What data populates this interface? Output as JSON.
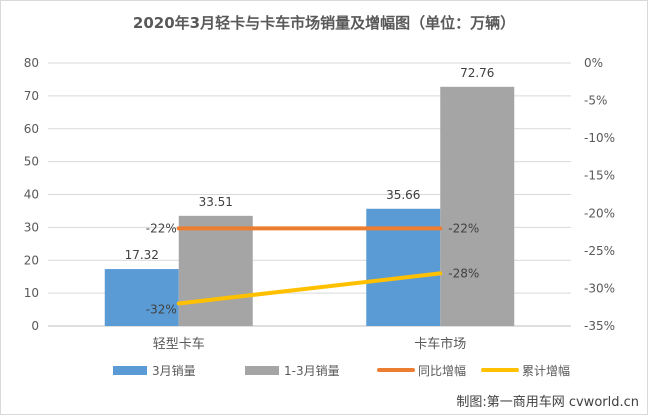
{
  "chart_data": {
    "type": "bar",
    "title": "2020年3月轻卡与卡车市场销量及增幅图（单位：万辆）",
    "categories": [
      "轻型卡车",
      "卡车市场"
    ],
    "series": [
      {
        "name": "3月销量",
        "kind": "bar",
        "axis": "left",
        "color": "#5b9bd5",
        "values": [
          17.32,
          35.66
        ],
        "labels": [
          "17.32",
          "35.66"
        ]
      },
      {
        "name": "1-3月销量",
        "kind": "bar",
        "axis": "left",
        "color": "#a5a5a5",
        "values": [
          33.51,
          72.76
        ],
        "labels": [
          "33.51",
          "72.76"
        ]
      },
      {
        "name": "同比增幅",
        "kind": "line",
        "axis": "right",
        "color": "#ed7d31",
        "values": [
          -22,
          -22
        ],
        "labels": [
          "-22%",
          "-22%"
        ]
      },
      {
        "name": "累计增幅",
        "kind": "line",
        "axis": "right",
        "color": "#ffc000",
        "values": [
          -32,
          -28
        ],
        "labels": [
          "-32%",
          "-28%"
        ]
      }
    ],
    "y_left": {
      "min": 0,
      "max": 80,
      "step": 10,
      "ticks": [
        "0",
        "10",
        "20",
        "30",
        "40",
        "50",
        "60",
        "70",
        "80"
      ]
    },
    "y_right": {
      "min": -35,
      "max": 0,
      "step": 5,
      "ticks": [
        "-35%",
        "-30%",
        "-25%",
        "-20%",
        "-15%",
        "-10%",
        "-5%",
        "0%"
      ]
    },
    "grid": true,
    "legend_position": "bottom"
  },
  "credit": "制图:第一商用车网 cvworld.cn"
}
